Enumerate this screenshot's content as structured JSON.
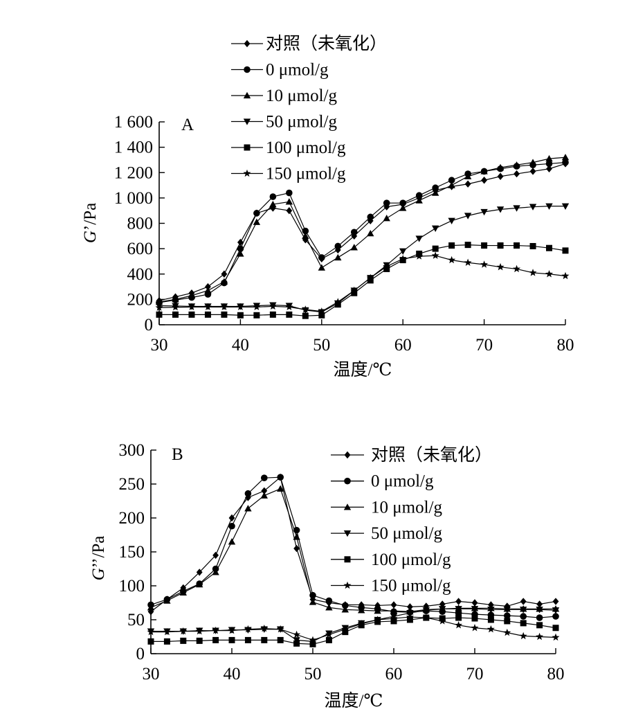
{
  "chart_data": [
    {
      "type": "line",
      "panel_label": "A",
      "xlabel": "温度/℃",
      "ylabel_italic": "G",
      "ylabel_rest": "’/Pa",
      "xlim": [
        30,
        80
      ],
      "ylim": [
        0,
        1600
      ],
      "x_ticks": [
        30,
        40,
        50,
        60,
        70,
        80
      ],
      "x_tick_labels": [
        "30",
        "40",
        "50",
        "60",
        "70",
        "80"
      ],
      "y_ticks": [
        0,
        200,
        400,
        600,
        800,
        1000,
        1200,
        1400,
        1600
      ],
      "y_tick_labels": [
        "0",
        "200",
        "400",
        "600",
        "800",
        "1 000",
        "1 200",
        "1 400",
        "1 600"
      ],
      "grid": false,
      "legend_position": "top-center",
      "x": [
        30,
        32,
        34,
        36,
        38,
        40,
        42,
        44,
        46,
        48,
        50,
        52,
        54,
        56,
        58,
        60,
        62,
        64,
        66,
        68,
        70,
        72,
        74,
        76,
        78,
        80
      ],
      "series": [
        {
          "name": "对照（未氧化）",
          "marker": "diamond",
          "values": [
            190,
            220,
            250,
            300,
            400,
            650,
            880,
            920,
            900,
            670,
            520,
            590,
            700,
            820,
            930,
            950,
            1000,
            1060,
            1090,
            1110,
            1140,
            1170,
            1190,
            1210,
            1230,
            1270
          ]
        },
        {
          "name": "0 μmol/g",
          "marker": "circle",
          "values": [
            175,
            195,
            215,
            240,
            330,
            600,
            880,
            1010,
            1040,
            740,
            530,
            620,
            730,
            850,
            960,
            960,
            1020,
            1080,
            1140,
            1190,
            1210,
            1230,
            1250,
            1260,
            1270,
            1280
          ]
        },
        {
          "name": "10 μmol/g",
          "marker": "triangle-up",
          "values": [
            180,
            200,
            230,
            270,
            340,
            560,
            810,
            950,
            970,
            700,
            450,
            530,
            610,
            720,
            840,
            920,
            980,
            1040,
            1100,
            1170,
            1210,
            1240,
            1260,
            1280,
            1310,
            1320
          ]
        },
        {
          "name": "50 μmol/g",
          "marker": "triangle-down",
          "values": [
            150,
            148,
            145,
            145,
            145,
            145,
            150,
            155,
            150,
            115,
            100,
            170,
            270,
            370,
            470,
            580,
            680,
            760,
            820,
            860,
            890,
            910,
            920,
            930,
            935,
            935
          ]
        },
        {
          "name": "100 μmol/g",
          "marker": "square",
          "values": [
            80,
            80,
            80,
            80,
            80,
            75,
            75,
            80,
            80,
            70,
            75,
            160,
            250,
            350,
            440,
            510,
            560,
            600,
            625,
            630,
            625,
            625,
            625,
            620,
            605,
            585
          ]
        },
        {
          "name": "150 μmol/g",
          "marker": "star",
          "values": [
            135,
            138,
            140,
            140,
            140,
            140,
            140,
            145,
            140,
            120,
            105,
            180,
            270,
            370,
            460,
            520,
            540,
            545,
            510,
            490,
            475,
            455,
            440,
            410,
            400,
            385
          ]
        }
      ]
    },
    {
      "type": "line",
      "panel_label": "B",
      "xlabel": "温度/℃",
      "ylabel_italic": "G",
      "ylabel_rest": "’’/Pa",
      "xlim": [
        30,
        80
      ],
      "ylim": [
        0,
        300
      ],
      "x_ticks": [
        30,
        40,
        50,
        60,
        70,
        80
      ],
      "x_tick_labels": [
        "30",
        "40",
        "50",
        "60",
        "70",
        "80"
      ],
      "y_ticks": [
        0,
        50,
        100,
        150,
        200,
        250,
        300
      ],
      "y_tick_labels": [
        "0",
        "50",
        "100",
        "150",
        "200",
        "250",
        "300"
      ],
      "grid": false,
      "legend_position": "top-right",
      "x": [
        30,
        32,
        34,
        36,
        38,
        40,
        42,
        44,
        46,
        48,
        50,
        52,
        54,
        56,
        58,
        60,
        62,
        64,
        66,
        68,
        70,
        72,
        74,
        76,
        78,
        80
      ],
      "series": [
        {
          "name": "对照（未氧化）",
          "marker": "diamond",
          "values": [
            62,
            80,
            97,
            120,
            145,
            200,
            230,
            240,
            260,
            155,
            80,
            75,
            72,
            72,
            71,
            72,
            69,
            70,
            73,
            77,
            75,
            72,
            70,
            77,
            73,
            77
          ]
        },
        {
          "name": "0 μmol/g",
          "marker": "circle",
          "values": [
            72,
            80,
            92,
            103,
            125,
            188,
            236,
            259,
            260,
            182,
            86,
            78,
            71,
            68,
            66,
            62,
            61,
            63,
            62,
            60,
            58,
            57,
            56,
            55,
            53,
            55
          ]
        },
        {
          "name": "10 μmol/g",
          "marker": "triangle-up",
          "values": [
            68,
            78,
            90,
            102,
            120,
            165,
            214,
            233,
            243,
            172,
            76,
            68,
            65,
            64,
            63,
            63,
            62,
            65,
            66,
            67,
            67,
            67,
            66,
            66,
            66,
            66
          ]
        },
        {
          "name": "50 μmol/g",
          "marker": "triangle-down",
          "values": [
            33,
            33,
            33,
            34,
            34,
            35,
            35,
            36,
            36,
            20,
            18,
            30,
            38,
            45,
            50,
            55,
            60,
            64,
            66,
            66,
            66,
            65,
            65,
            65,
            65,
            64
          ]
        },
        {
          "name": "100 μmol/g",
          "marker": "square",
          "values": [
            18,
            18,
            19,
            19,
            20,
            20,
            20,
            20,
            20,
            15,
            14,
            20,
            32,
            42,
            47,
            48,
            50,
            53,
            52,
            53,
            52,
            50,
            48,
            45,
            42,
            38
          ]
        },
        {
          "name": "150 μmol/g",
          "marker": "star",
          "values": [
            32,
            32,
            33,
            33,
            34,
            34,
            36,
            37,
            36,
            28,
            20,
            28,
            36,
            44,
            50,
            52,
            54,
            53,
            48,
            42,
            38,
            36,
            31,
            26,
            25,
            24
          ]
        }
      ]
    }
  ]
}
